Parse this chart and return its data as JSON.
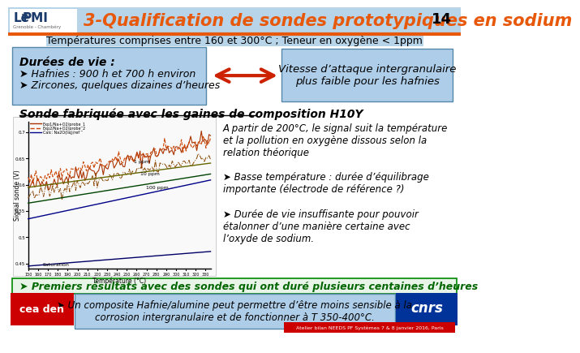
{
  "title": "3-Qualification de sondes prototypiques en sodium",
  "slide_number": "14",
  "subtitle": "Températures comprises entre 160 et 300°C ; Teneur en oxygène < 1ppm",
  "header_bg": "#B8D4E8",
  "header_title_color": "#E8580A",
  "slide_bg": "#FFFFFF",
  "box_bg": "#AECDE8",
  "box_border": "#5588AA",
  "section1_title": "Durées de vie :",
  "section1_bullets": [
    "Hafnies : 900 h et 700 h environ",
    "Zircones, quelques dizaines d’heures"
  ],
  "arrow_label_right": "Vitesse d’attaque intergranulaire\nplus faible pour les hafnies",
  "section2_title": "Sonde fabriquée avec les gaines de composition H10Y",
  "section2_text": "A partir de 200°C, le signal suit la température\net la pollution en oxygène dissous selon la\nrelation théorique",
  "section2_bullets": [
    "Basse température : durée d’équilibrage\nimportante (électrode de référence ?)",
    "Durée de vie insuffisante pour pouvoir\nétalonner d’une manière certaine avec\nl’oxyde de sodium."
  ],
  "bottom_green_text": "Premiers résultats avec des sondes qui ont duré plusieurs centaines d’heures",
  "bottom_box_text": "Un composite Hafnie/alumine peut permettre d’être moins sensible à la\ncorrosion intergranulaire et de fonctionner à T 350-400°C.",
  "footer_text": "Atelier bilan NEEDS PF Systèmes 7 & 8 janvier 2016, Paris",
  "lepmi_color": "#1A3A6B",
  "orange": "#E8580A",
  "green_text_color": "#006600",
  "bottom_box_bg": "#AECDE8",
  "graph_colors": [
    "#AA3300",
    "#006600",
    "#0000CC",
    "#888800",
    "#CC0000",
    "#444444"
  ],
  "graph_labels": [
    "1 ppm",
    "10 ppm",
    "100 ppm",
    "Saturation"
  ]
}
